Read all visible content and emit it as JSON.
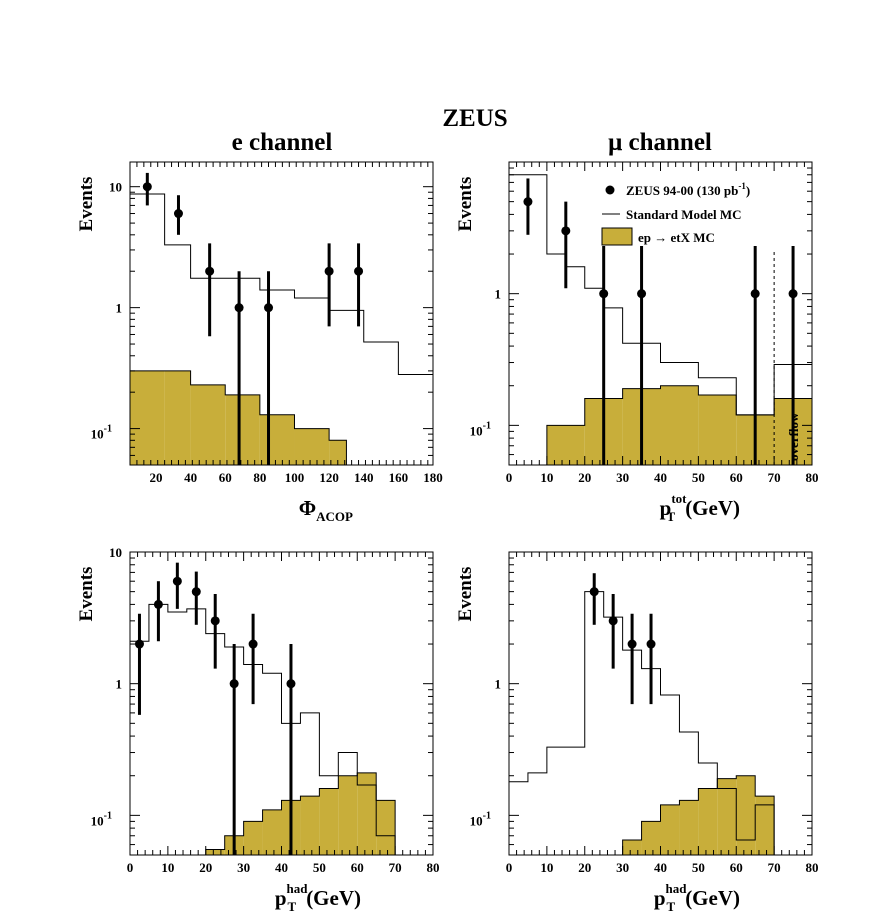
{
  "figure_title": "ZEUS",
  "column_titles": [
    "e channel",
    "μ channel"
  ],
  "colors": {
    "signal_fill": "#c8ae3a",
    "line": "#000000"
  },
  "legend": {
    "data": "ZEUS 94-00 (130 pb",
    "data_sup": "-1",
    "data_close": ")",
    "sm": "Standard Model MC",
    "signal": "ep → etX MC"
  },
  "chart_data": [
    {
      "type": "line",
      "panel": "top-left",
      "xlabel": "Φ",
      "xlabel_sub": "ACOP",
      "xlabel_unit": "",
      "ylabel": "Events",
      "y_scale": "log",
      "xlim": [
        5,
        180
      ],
      "ylim": [
        0.05,
        16
      ],
      "xticks": [
        20,
        40,
        60,
        80,
        100,
        120,
        140,
        160,
        180
      ],
      "yticks": [
        {
          "v": 10,
          "base": "10",
          "exp": ""
        },
        {
          "v": 1,
          "base": "1",
          "exp": ""
        },
        {
          "v": 0.1,
          "base": "10",
          "exp": "-1"
        }
      ],
      "sm_mc": {
        "edges": [
          5,
          25,
          40,
          60,
          80,
          100,
          120,
          140,
          160,
          180
        ],
        "values": [
          8.7,
          3.3,
          1.75,
          1.75,
          1.4,
          1.2,
          0.95,
          0.52,
          0.28
        ]
      },
      "signal_mc": {
        "edges": [
          5,
          25,
          40,
          60,
          80,
          100,
          120,
          130
        ],
        "values": [
          0.3,
          0.3,
          0.23,
          0.19,
          0.13,
          0.1,
          0.08
        ]
      },
      "data": [
        {
          "x": 15,
          "y": 10,
          "lo": 7,
          "hi": 13
        },
        {
          "x": 33,
          "y": 6,
          "lo": 4,
          "hi": 8.5
        },
        {
          "x": 51,
          "y": 2,
          "lo": 0.58,
          "hi": 3.4
        },
        {
          "x": 68,
          "y": 1,
          "lo": 0.05,
          "hi": 2
        },
        {
          "x": 85,
          "y": 1,
          "lo": 0.05,
          "hi": 2
        },
        {
          "x": 120,
          "y": 2,
          "lo": 0.7,
          "hi": 3.4
        },
        {
          "x": 137,
          "y": 2,
          "lo": 0.7,
          "hi": 3.4
        }
      ]
    },
    {
      "type": "line",
      "panel": "top-right",
      "xlabel": "p",
      "xlabel_sub": "T",
      "xlabel_sup": "tot",
      "xlabel_unit": "(GeV)",
      "ylabel": "Events",
      "y_scale": "log",
      "xlim": [
        0,
        80
      ],
      "ylim": [
        0.05,
        10
      ],
      "xticks": [
        0,
        10,
        20,
        30,
        40,
        50,
        60,
        70,
        80
      ],
      "yticks": [
        {
          "v": 1,
          "base": "1",
          "exp": ""
        },
        {
          "v": 0.1,
          "base": "10",
          "exp": "-1"
        }
      ],
      "overflow_label": "overflow",
      "overflow_x": 70,
      "sm_mc": {
        "edges": [
          0,
          10,
          15,
          20,
          25,
          30,
          40,
          50,
          60,
          70,
          80
        ],
        "values": [
          8,
          2,
          1.6,
          1.1,
          0.78,
          0.42,
          0.3,
          0.23,
          0.12,
          0.29
        ]
      },
      "signal_mc": {
        "edges": [
          10,
          20,
          30,
          40,
          50,
          60,
          70,
          80
        ],
        "values": [
          0.1,
          0.16,
          0.19,
          0.2,
          0.17,
          0.12,
          0.16
        ]
      },
      "data": [
        {
          "x": 5,
          "y": 5,
          "lo": 2.8,
          "hi": 7.5
        },
        {
          "x": 15,
          "y": 3,
          "lo": 1.1,
          "hi": 5
        },
        {
          "x": 25,
          "y": 1,
          "lo": 0.05,
          "hi": 2.3
        },
        {
          "x": 35,
          "y": 1,
          "lo": 0.05,
          "hi": 2.3
        },
        {
          "x": 65,
          "y": 1,
          "lo": 0.05,
          "hi": 2.3
        },
        {
          "x": 75,
          "y": 1,
          "lo": 0.05,
          "hi": 2.3
        }
      ]
    },
    {
      "type": "line",
      "panel": "bottom-left",
      "xlabel": "p",
      "xlabel_sub": "T",
      "xlabel_sup": "had",
      "xlabel_unit": "(GeV)",
      "ylabel": "Events",
      "y_scale": "log",
      "xlim": [
        0,
        80
      ],
      "ylim": [
        0.05,
        10
      ],
      "xticks": [
        0,
        10,
        20,
        30,
        40,
        50,
        60,
        70,
        80
      ],
      "yticks": [
        {
          "v": 10,
          "base": "10",
          "exp": ""
        },
        {
          "v": 1,
          "base": "1",
          "exp": ""
        },
        {
          "v": 0.1,
          "base": "10",
          "exp": "-1"
        }
      ],
      "sm_mc": {
        "edges": [
          0,
          5,
          10,
          15,
          20,
          25,
          30,
          35,
          40,
          45,
          50,
          55,
          60,
          65,
          70
        ],
        "values": [
          2.1,
          4,
          3.5,
          3.7,
          2.4,
          1.9,
          1.4,
          1.2,
          0.5,
          0.6,
          0.2,
          0.3,
          0.17,
          0.07
        ]
      },
      "signal_mc": {
        "edges": [
          20,
          25,
          30,
          35,
          40,
          45,
          50,
          55,
          60,
          65,
          70
        ],
        "values": [
          0.055,
          0.07,
          0.09,
          0.11,
          0.13,
          0.14,
          0.16,
          0.2,
          0.21,
          0.13
        ]
      },
      "data": [
        {
          "x": 2.5,
          "y": 2,
          "lo": 0.58,
          "hi": 3.4
        },
        {
          "x": 7.5,
          "y": 4,
          "lo": 2.1,
          "hi": 6
        },
        {
          "x": 12.5,
          "y": 6,
          "lo": 3.7,
          "hi": 8.3
        },
        {
          "x": 17.5,
          "y": 5,
          "lo": 2.8,
          "hi": 7.1
        },
        {
          "x": 22.5,
          "y": 3,
          "lo": 1.3,
          "hi": 4.8
        },
        {
          "x": 27.5,
          "y": 1,
          "lo": 0.05,
          "hi": 2
        },
        {
          "x": 32.5,
          "y": 2,
          "lo": 0.7,
          "hi": 3.4
        },
        {
          "x": 42.5,
          "y": 1,
          "lo": 0.05,
          "hi": 2
        }
      ]
    },
    {
      "type": "line",
      "panel": "bottom-right",
      "xlabel": "p",
      "xlabel_sub": "T",
      "xlabel_sup": "had",
      "xlabel_unit": "(GeV)",
      "ylabel": "Events",
      "y_scale": "log",
      "xlim": [
        0,
        80
      ],
      "ylim": [
        0.05,
        10
      ],
      "xticks": [
        0,
        10,
        20,
        30,
        40,
        50,
        60,
        70,
        80
      ],
      "yticks": [
        {
          "v": 1,
          "base": "1",
          "exp": ""
        },
        {
          "v": 0.1,
          "base": "10",
          "exp": "-1"
        }
      ],
      "sm_mc": {
        "edges": [
          0,
          5,
          10,
          15,
          20,
          25,
          30,
          35,
          40,
          45,
          50,
          55,
          60,
          65,
          70
        ],
        "values": [
          0.18,
          0.21,
          0.33,
          0.33,
          5,
          3.2,
          1.8,
          1.3,
          0.82,
          0.43,
          0.25,
          0.16,
          0.065,
          0.12
        ]
      },
      "signal_mc": {
        "edges": [
          30,
          35,
          40,
          45,
          50,
          55,
          60,
          65,
          70
        ],
        "values": [
          0.065,
          0.09,
          0.12,
          0.13,
          0.16,
          0.19,
          0.2,
          0.14
        ]
      },
      "data": [
        {
          "x": 22.5,
          "y": 5,
          "lo": 2.8,
          "hi": 6.9
        },
        {
          "x": 27.5,
          "y": 3,
          "lo": 1.3,
          "hi": 4.8
        },
        {
          "x": 32.5,
          "y": 2,
          "lo": 0.7,
          "hi": 3.4
        },
        {
          "x": 37.5,
          "y": 2,
          "lo": 0.7,
          "hi": 3.4
        }
      ]
    }
  ]
}
